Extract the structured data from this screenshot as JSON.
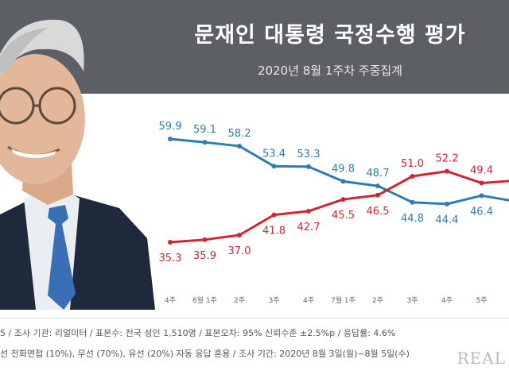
{
  "header": {
    "title": "문재인 대통령 국정수행 평가",
    "subtitle": "2020년 8월 1주차 주중집계"
  },
  "colors": {
    "header_bg": "#5c5f63",
    "disapprove": "#2f7bb4",
    "approve": "#d0262e"
  },
  "chart_data": {
    "type": "line",
    "categories": [
      "4주",
      "6월 1주",
      "2주",
      "3주",
      "4주",
      "7월 1주",
      "2주",
      "3주",
      "4주",
      "5주",
      ""
    ],
    "series": [
      {
        "values": [
          59.9,
          59.1,
          58.2,
          53.4,
          53.3,
          49.8,
          48.7,
          44.8,
          44.4,
          46.4,
          45.0
        ],
        "color": "#2f7bb4"
      },
      {
        "values": [
          35.3,
          35.9,
          37.0,
          41.8,
          42.7,
          45.5,
          46.5,
          51.0,
          52.2,
          49.4,
          50.0
        ],
        "color": "#d0262e"
      }
    ],
    "data_labels": [
      [
        "59.9",
        "59.1",
        "58.2",
        "53.4",
        "53.3",
        "49.8",
        "48.7",
        "44.8",
        "44.4",
        "46.4",
        ""
      ],
      [
        "35.3",
        "35.9",
        "37.0",
        "41.8",
        "42.7",
        "45.5",
        "46.5",
        "51.0",
        "52.2",
        "49.4",
        ""
      ]
    ],
    "label_position": [
      [
        "above",
        "above",
        "above",
        "above",
        "above",
        "above",
        "above",
        "below",
        "below",
        "below",
        "below"
      ],
      [
        "below",
        "below",
        "below",
        "below",
        "below",
        "below",
        "below",
        "above",
        "above",
        "above",
        "above"
      ]
    ],
    "ylim": [
      30,
      65
    ],
    "grid": false
  },
  "footer": {
    "line1": "5 / 조사 기관: 리얼미터 / 표본수: 전국 성인 1,510명 / 표본오차: 95% 신뢰수준 ±2.5%p / 응답률: 4.6%",
    "line2": "선 전화면접 (10%), 무선 (70%), 유선 (20%) 자동 응답 혼용 / 조사 기간: 2020년 8월 3일(월)~8월 5일(수)",
    "watermark": "REAL"
  }
}
